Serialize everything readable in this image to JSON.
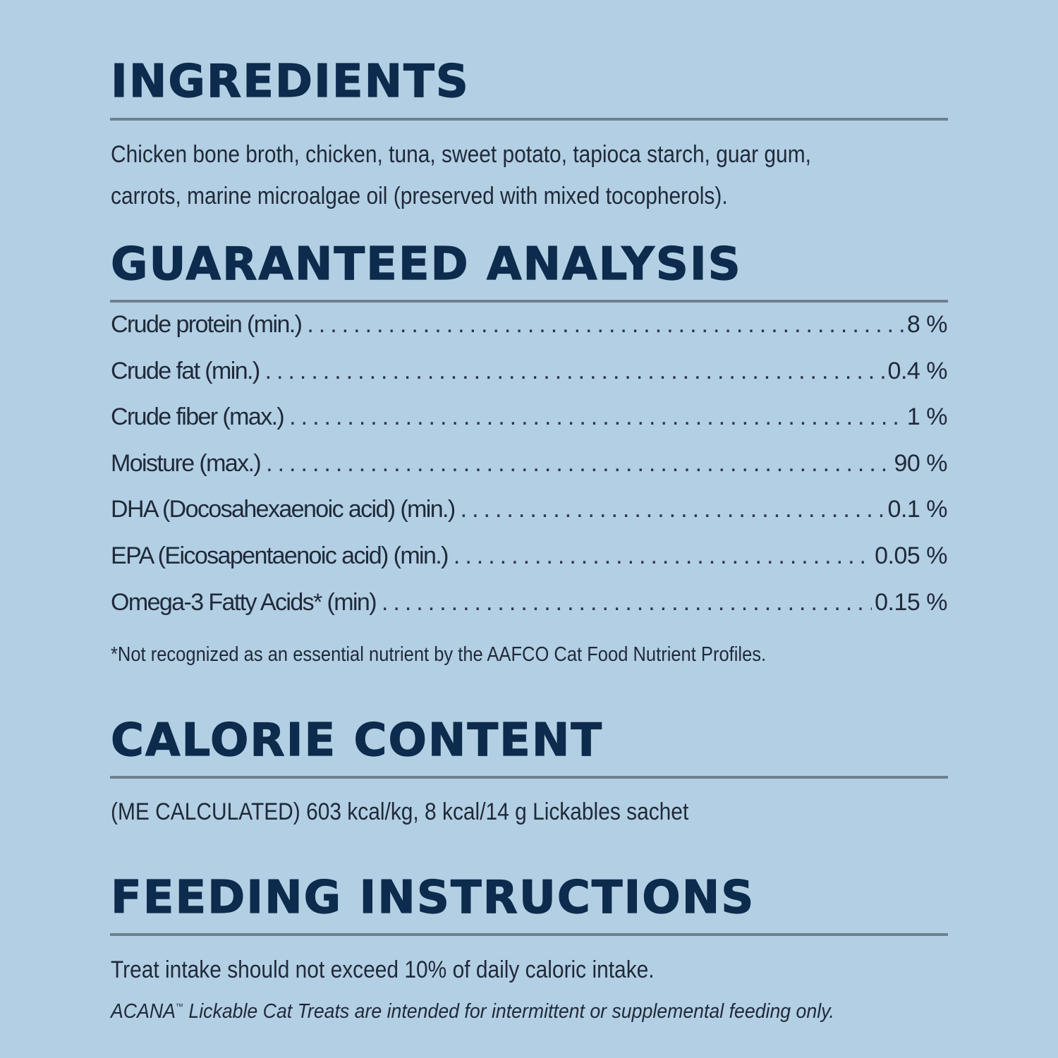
{
  "ingredients": {
    "heading": "INGREDIENTS",
    "line1": "Chicken bone broth, chicken, tuna, sweet potato, tapioca starch, guar gum,",
    "line2": "carrots, marine microalgae oil (preserved with mixed tocopherols)."
  },
  "analysis": {
    "heading": "GUARANTEED ANALYSIS",
    "rows": [
      {
        "label": "Crude protein (min.)",
        "value": "8 %"
      },
      {
        "label": "Crude fat (min.)",
        "value": "0.4 %"
      },
      {
        "label": "Crude fiber (max.)",
        "value": "1 %"
      },
      {
        "label": "Moisture (max.)",
        "value": "90 %"
      },
      {
        "label": "DHA (Docosahexaenoic acid) (min.)",
        "value": "0.1 %"
      },
      {
        "label": "EPA (Eicosapentaenoic acid) (min.)",
        "value": "0.05 %"
      },
      {
        "label": "Omega-3 Fatty Acids* (min)",
        "value": "0.15 %"
      }
    ],
    "footnote": "*Not recognized as an essential nutrient by the AAFCO Cat Food Nutrient Profiles."
  },
  "calorie": {
    "heading": "CALORIE CONTENT",
    "text": "(ME CALCULATED) 603 kcal/kg, 8 kcal/14 g Lickables sachet"
  },
  "feeding": {
    "heading": "FEEDING INSTRUCTIONS",
    "text": "Treat intake should not exceed 10% of daily caloric intake.",
    "note_brand": "ACANA",
    "note_tm": "™",
    "note_rest": " Lickable Cat Treats are intended for intermittent or supplemental feeding only."
  }
}
